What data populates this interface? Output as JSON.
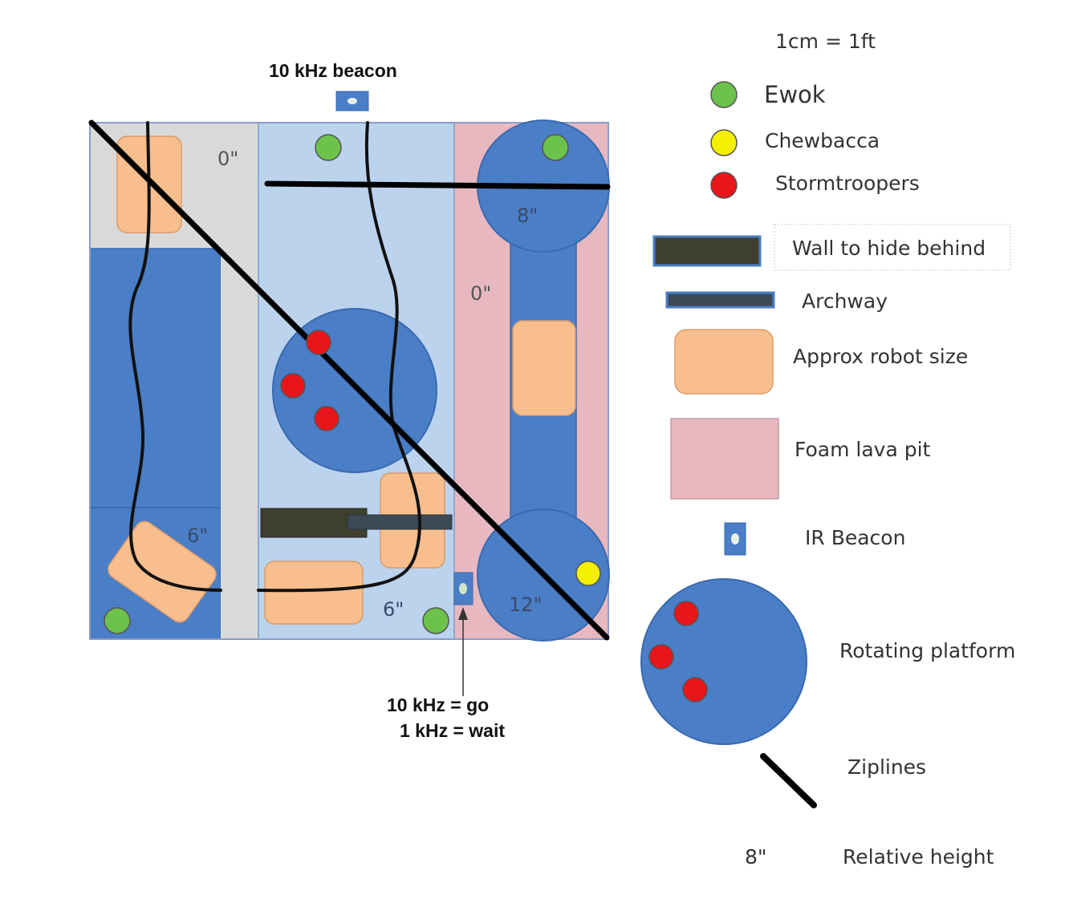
{
  "scale_note": "1cm = 1ft",
  "beacon_top_label": "10 kHz beacon",
  "beacon_bottom_label": {
    "line1": "10 kHz = go",
    "line2": "1 kHz = wait"
  },
  "heights": {
    "grey_strip": "0\"",
    "left_bottom": "6\"",
    "middle_bottom": "6\"",
    "lava_pit": "0\"",
    "top_platform": "8\"",
    "bottom_platform": "12\""
  },
  "legend": {
    "ewok": "Ewok",
    "chewbacca": "Chewbacca",
    "stormtroopers": "Stormtroopers",
    "wall": "Wall to hide behind",
    "archway": "Archway",
    "robot": "Approx robot size",
    "lava": "Foam lava pit",
    "ir_beacon": "IR Beacon",
    "platform": "Rotating platform",
    "ziplines": "Ziplines",
    "height_sample": "8\"",
    "height_label": "Relative height"
  },
  "colors": {
    "ewok": "#6cc24a",
    "chewbacca": "#f5f000",
    "stormtrooper": "#e8151b",
    "platform_blue": "#4a7ec6",
    "light_blue": "#bcd3ee",
    "lava_pink": "#e8b8c0",
    "robot_orange": "#f9be8e",
    "wall_dark": "#3f3f2e",
    "arch_dark": "#3b4a55",
    "grey_strip": "#d9d9d9"
  }
}
